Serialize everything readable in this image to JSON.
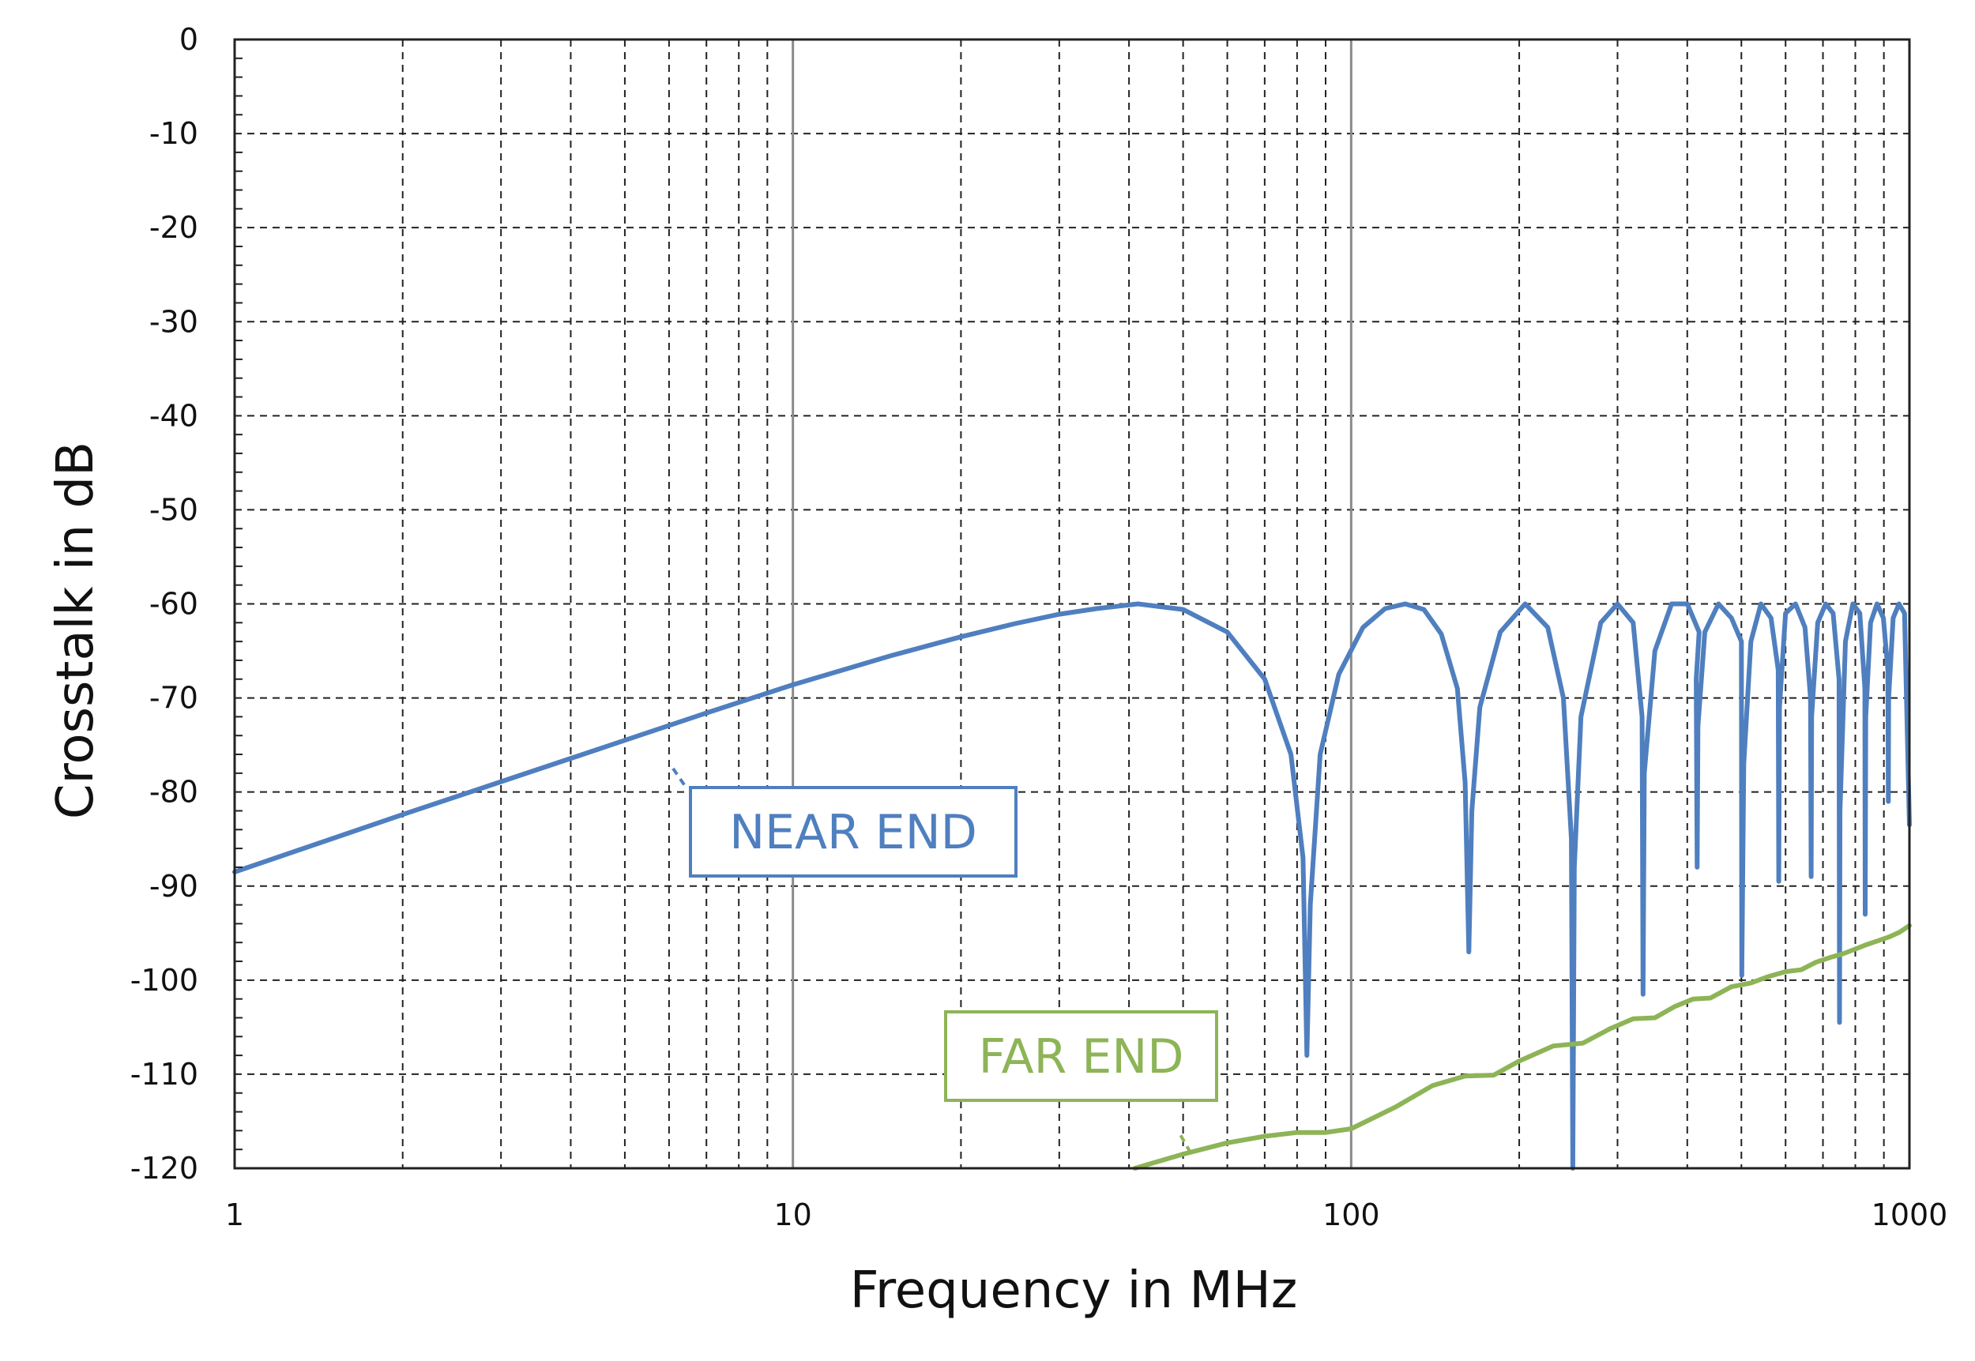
{
  "colors": {
    "near_end": "#4F7FBF",
    "far_end": "#8DB456",
    "grid_dashed": "#222222",
    "grid_decade": "#8a8a8a",
    "axis": "#222222",
    "background": "#ffffff"
  },
  "chart_data": {
    "type": "line",
    "x_scale": "log",
    "xlabel": "Frequency in MHz",
    "ylabel": "Crosstalk in dB",
    "xlim": [
      1,
      1000
    ],
    "ylim": [
      -120,
      0
    ],
    "x_ticks": [
      1,
      10,
      100,
      1000
    ],
    "x_tick_labels": [
      "1",
      "10",
      "100",
      "1000"
    ],
    "y_ticks": [
      0,
      -10,
      -20,
      -30,
      -40,
      -50,
      -60,
      -70,
      -80,
      -90,
      -100,
      -110,
      -120
    ],
    "y_tick_labels": [
      "0",
      "-10",
      "-20",
      "-30",
      "-40",
      "-50",
      "-60",
      "-70",
      "-80",
      "-90",
      "-100",
      "-110",
      "-120"
    ],
    "grid": true,
    "series": [
      {
        "name": "NEAR END",
        "color": "#4F7FBF",
        "x": [
          1,
          2,
          3,
          5,
          7,
          10,
          15,
          20,
          25,
          30,
          35,
          41.5,
          50,
          60,
          70,
          78,
          82,
          83.3,
          84.5,
          88,
          95,
          105,
          115,
          125,
          135,
          145,
          155,
          160,
          162.5,
          164.5,
          170,
          185,
          205,
          225,
          240,
          248,
          249.5,
          251,
          258,
          280,
          300,
          320,
          332,
          333.3,
          335,
          350,
          375,
          400,
          420,
          415,
          416.7,
          418,
          430,
          455,
          480,
          500,
          500.8,
          505,
          520,
          542,
          565,
          582,
          583.3,
          585,
          600,
          625,
          650,
          665,
          666.7,
          668,
          685,
          708,
          730,
          748,
          749.5,
          751,
          768,
          792,
          815,
          832,
          833.3,
          835,
          852,
          875,
          898,
          915,
          916.7,
          918,
          935,
          958,
          980,
          1000
        ],
        "y": [
          -88.5,
          -82.4,
          -78.9,
          -74.5,
          -71.6,
          -68.6,
          -65.5,
          -63.5,
          -62.1,
          -61.1,
          -60.5,
          -60,
          -60.6,
          -63,
          -68,
          -76,
          -87,
          -108,
          -92,
          -76,
          -67.5,
          -62.5,
          -60.5,
          -60,
          -60.6,
          -63.2,
          -69,
          -79,
          -97,
          -82,
          -71,
          -63,
          -60,
          -62.5,
          -70,
          -85,
          -120,
          -88,
          -72,
          -62,
          -60,
          -62,
          -72,
          -101.5,
          -78,
          -65,
          -60,
          -60,
          -63,
          -68,
          -88,
          -73,
          -63,
          -60,
          -61.5,
          -64,
          -99.5,
          -77,
          -64,
          -60,
          -61.5,
          -67,
          -89.5,
          -71,
          -61,
          -60,
          -62.5,
          -70,
          -89,
          -72,
          -62,
          -60,
          -61,
          -68,
          -104.5,
          -82,
          -64,
          -60,
          -61,
          -69,
          -93,
          -72,
          -62,
          -60,
          -61.5,
          -67,
          -81,
          -70,
          -61.5,
          -60,
          -61,
          -83.5
        ]
      },
      {
        "name": "FAR END",
        "color": "#8DB456",
        "x": [
          41,
          50,
          60,
          70,
          80,
          90,
          100,
          120,
          140,
          160,
          180,
          200,
          230,
          260,
          290,
          320,
          350,
          380,
          410,
          440,
          480,
          520,
          560,
          600,
          640,
          680,
          720,
          760,
          800,
          840,
          880,
          920,
          960,
          1000
        ],
        "y": [
          -120,
          -118.5,
          -117.3,
          -116.6,
          -116.2,
          -116.2,
          -115.8,
          -113.5,
          -111.2,
          -110.2,
          -110.1,
          -108.6,
          -107,
          -106.7,
          -105.2,
          -104.1,
          -104,
          -102.8,
          -102,
          -101.9,
          -100.7,
          -100.3,
          -99.6,
          -99.1,
          -98.9,
          -98.1,
          -97.6,
          -97.2,
          -96.7,
          -96.2,
          -95.8,
          -95.4,
          -94.9,
          -94.2
        ]
      }
    ],
    "annotations": [
      {
        "text": "NEAR END",
        "series": "NEAR END",
        "box_x": 50,
        "box_y": -84,
        "pointer_x": [
          6.1,
          6.4
        ],
        "pointer_y": [
          -77.5,
          -79.3
        ]
      },
      {
        "text": "FAR END",
        "series": "FAR END",
        "box_x": 52,
        "box_y": -108,
        "pointer_x": [
          49.5,
          51.5
        ],
        "pointer_y": [
          -116.5,
          -118.3
        ]
      }
    ]
  }
}
